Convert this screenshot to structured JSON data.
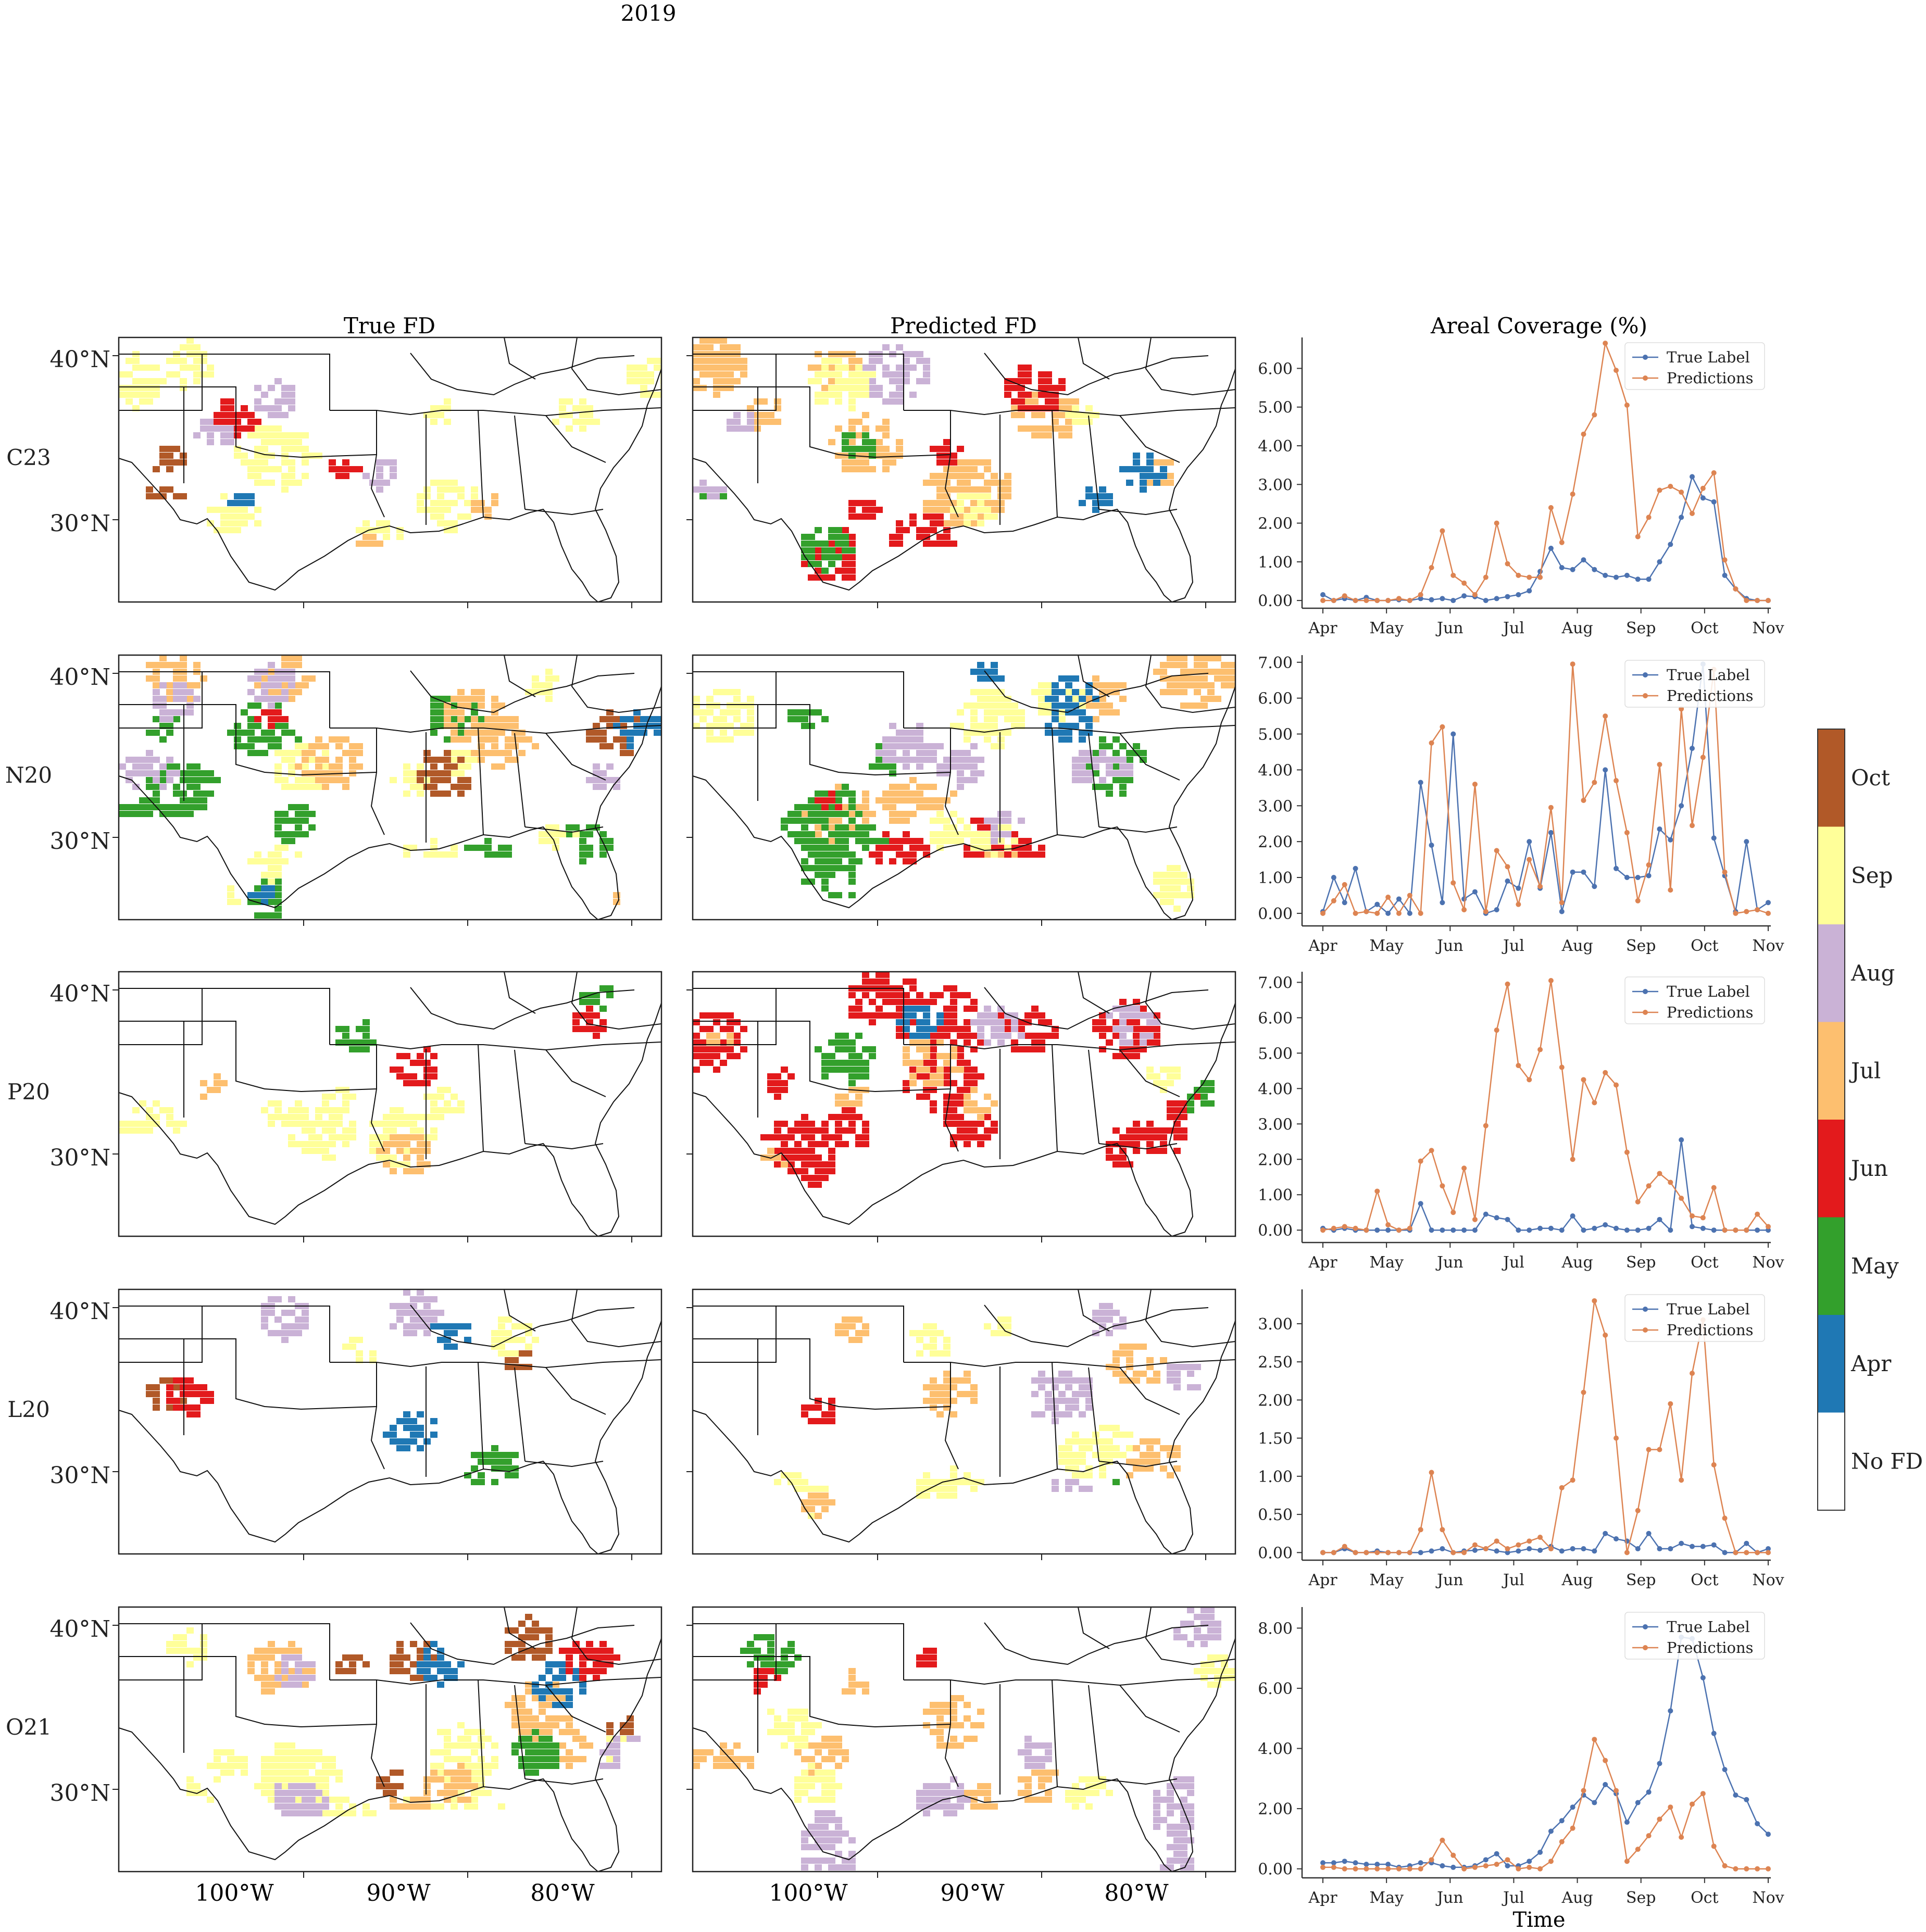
{
  "figure": {
    "suptitle": "2019",
    "column_titles": [
      "True FD",
      "Predicted FD",
      "Areal Coverage (%)"
    ],
    "row_labels": [
      "C23",
      "N20",
      "P20",
      "L20",
      "O21"
    ],
    "lat_labels": [
      "40°N",
      "30°N"
    ],
    "lon_labels": [
      "100°W",
      "90°W",
      "80°W"
    ],
    "bottom_xlabel": "Time"
  },
  "colorbar": {
    "labels": [
      "No FD",
      "Apr",
      "May",
      "Jun",
      "Jul",
      "Aug",
      "Sep",
      "Oct"
    ],
    "colors": [
      "#ffffff",
      "#1f78b4",
      "#33a02c",
      "#e31a1c",
      "#fdbf6f",
      "#cab2d6",
      "#ffff99",
      "#b15928"
    ]
  },
  "map_regions": [
    {
      "row": "C23",
      "true": [
        [
          "Sep",
          0.3
        ],
        [
          "Aug",
          0.15
        ],
        [
          "Oct",
          0.08
        ],
        [
          "Jul",
          0.08
        ],
        [
          "Apr",
          0.04
        ],
        [
          "Jun",
          0.04
        ]
      ],
      "pred": [
        [
          "Jul",
          0.35
        ],
        [
          "Aug",
          0.2
        ],
        [
          "Jun",
          0.15
        ],
        [
          "May",
          0.1
        ],
        [
          "Sep",
          0.1
        ],
        [
          "Apr",
          0.02
        ]
      ]
    },
    {
      "row": "N20",
      "true": [
        [
          "May",
          0.3
        ],
        [
          "Sep",
          0.25
        ],
        [
          "Jul",
          0.2
        ],
        [
          "Aug",
          0.15
        ],
        [
          "Oct",
          0.08
        ],
        [
          "Apr",
          0.08
        ],
        [
          "Jun",
          0.06
        ]
      ],
      "pred": [
        [
          "Jul",
          0.3
        ],
        [
          "May",
          0.3
        ],
        [
          "Jun",
          0.2
        ],
        [
          "Sep",
          0.2
        ],
        [
          "Aug",
          0.15
        ],
        [
          "Apr",
          0.1
        ]
      ]
    },
    {
      "row": "P20",
      "true": [
        [
          "Sep",
          0.2
        ],
        [
          "May",
          0.05
        ],
        [
          "Jun",
          0.04
        ],
        [
          "Aug",
          0.04
        ],
        [
          "Jul",
          0.04
        ]
      ],
      "pred": [
        [
          "Jun",
          0.45
        ],
        [
          "Jul",
          0.15
        ],
        [
          "May",
          0.1
        ],
        [
          "Apr",
          0.06
        ],
        [
          "Aug",
          0.05
        ],
        [
          "Sep",
          0.08
        ]
      ]
    },
    {
      "row": "L20",
      "true": [
        [
          "Aug",
          0.06
        ],
        [
          "Oct",
          0.06
        ],
        [
          "Jun",
          0.03
        ],
        [
          "Apr",
          0.02
        ],
        [
          "May",
          0.02
        ],
        [
          "Sep",
          0.03
        ]
      ],
      "pred": [
        [
          "Sep",
          0.2
        ],
        [
          "Jul",
          0.15
        ],
        [
          "Aug",
          0.15
        ],
        [
          "May",
          0.08
        ],
        [
          "Jun",
          0.02
        ]
      ]
    },
    {
      "row": "O21",
      "true": [
        [
          "Sep",
          0.4
        ],
        [
          "Jul",
          0.2
        ],
        [
          "Oct",
          0.15
        ],
        [
          "Aug",
          0.15
        ],
        [
          "Apr",
          0.05
        ],
        [
          "May",
          0.05
        ],
        [
          "Jun",
          0.04
        ]
      ],
      "pred": [
        [
          "Jul",
          0.25
        ],
        [
          "Aug",
          0.25
        ],
        [
          "Sep",
          0.15
        ],
        [
          "May",
          0.06
        ],
        [
          "Jun",
          0.02
        ]
      ]
    }
  ],
  "chart_data": [
    {
      "type": "line",
      "row": "C23",
      "x_ticks": [
        "Apr",
        "May",
        "Jun",
        "Jul",
        "Aug",
        "Sep",
        "Oct",
        "Nov"
      ],
      "y_ticks": [
        "0.00",
        "1.00",
        "2.00",
        "3.00",
        "4.00",
        "5.00",
        "6.00"
      ],
      "ylim": [
        -0.2,
        6.8
      ],
      "legend": "top-right",
      "series": [
        {
          "name": "True Label",
          "color": "#4c72b0",
          "values": [
            0.15,
            0.0,
            0.05,
            0.0,
            0.08,
            0.0,
            0.0,
            0.02,
            0.0,
            0.05,
            0.02,
            0.05,
            0.0,
            0.12,
            0.1,
            0.0,
            0.05,
            0.1,
            0.15,
            0.25,
            0.75,
            1.35,
            0.85,
            0.8,
            1.05,
            0.8,
            0.65,
            0.6,
            0.65,
            0.55,
            0.55,
            1.0,
            1.45,
            2.15,
            3.2,
            2.65,
            2.55,
            0.65,
            0.3,
            0.05,
            0.0,
            0.0
          ]
        },
        {
          "name": "Predictions",
          "color": "#dd8452",
          "values": [
            0.0,
            0.0,
            0.12,
            0.0,
            0.0,
            0.0,
            0.0,
            0.05,
            0.0,
            0.15,
            0.85,
            1.8,
            0.65,
            0.45,
            0.15,
            0.6,
            2.0,
            0.95,
            0.65,
            0.6,
            0.6,
            2.4,
            1.5,
            2.75,
            4.3,
            4.8,
            6.65,
            5.95,
            5.05,
            1.65,
            2.15,
            2.85,
            2.95,
            2.8,
            2.25,
            2.9,
            3.3,
            1.05,
            0.3,
            0.0,
            0.0,
            0.0
          ]
        }
      ]
    },
    {
      "type": "line",
      "row": "N20",
      "x_ticks": [
        "Apr",
        "May",
        "Jun",
        "Jul",
        "Aug",
        "Sep",
        "Oct",
        "Nov"
      ],
      "y_ticks": [
        "0.00",
        "1.00",
        "2.00",
        "3.00",
        "4.00",
        "5.00",
        "6.00",
        "7.00"
      ],
      "ylim": [
        -0.35,
        7.2
      ],
      "legend": "top-right",
      "series": [
        {
          "name": "True Label",
          "color": "#4c72b0",
          "values": [
            0.05,
            1.0,
            0.3,
            1.25,
            0.05,
            0.25,
            0.0,
            0.4,
            0.0,
            3.65,
            1.9,
            0.3,
            5.0,
            0.4,
            0.6,
            0.0,
            0.1,
            0.9,
            0.7,
            2.0,
            0.7,
            2.25,
            0.05,
            1.15,
            1.15,
            0.75,
            4.0,
            1.25,
            1.0,
            1.0,
            1.05,
            2.35,
            2.05,
            3.0,
            4.6,
            6.95,
            2.1,
            1.05,
            0.05,
            2.0,
            0.1,
            0.3
          ]
        },
        {
          "name": "Predictions",
          "color": "#dd8452",
          "values": [
            0.0,
            0.35,
            0.8,
            0.0,
            0.05,
            0.0,
            0.45,
            0.0,
            0.5,
            0.0,
            4.75,
            5.2,
            0.85,
            0.1,
            3.6,
            0.05,
            1.75,
            1.3,
            0.25,
            1.5,
            0.75,
            2.95,
            0.3,
            6.95,
            3.15,
            3.65,
            5.5,
            3.7,
            2.25,
            0.35,
            1.35,
            4.15,
            0.65,
            5.7,
            2.45,
            4.35,
            6.8,
            1.15,
            0.0,
            0.05,
            0.1,
            0.0
          ]
        }
      ]
    },
    {
      "type": "line",
      "row": "P20",
      "x_ticks": [
        "Apr",
        "May",
        "Jun",
        "Jul",
        "Aug",
        "Sep",
        "Oct",
        "Nov"
      ],
      "y_ticks": [
        "0.00",
        "1.00",
        "2.00",
        "3.00",
        "4.00",
        "5.00",
        "6.00",
        "7.00"
      ],
      "ylim": [
        -0.35,
        7.3
      ],
      "legend": "top-right",
      "series": [
        {
          "name": "True Label",
          "color": "#4c72b0",
          "values": [
            0.05,
            0.0,
            0.05,
            0.0,
            0.0,
            0.0,
            0.0,
            0.0,
            0.0,
            0.75,
            0.0,
            0.0,
            0.0,
            0.0,
            0.0,
            0.45,
            0.35,
            0.3,
            0.0,
            0.0,
            0.05,
            0.05,
            0.0,
            0.4,
            0.0,
            0.05,
            0.15,
            0.05,
            0.0,
            0.0,
            0.05,
            0.3,
            0.0,
            2.55,
            0.1,
            0.05,
            0.0,
            0.0,
            0.0,
            0.0,
            0.0,
            0.0
          ]
        },
        {
          "name": "Predictions",
          "color": "#dd8452",
          "values": [
            0.0,
            0.05,
            0.1,
            0.05,
            0.0,
            1.1,
            0.15,
            0.0,
            0.05,
            1.95,
            2.25,
            1.25,
            0.5,
            1.75,
            0.3,
            2.95,
            5.65,
            6.95,
            4.65,
            4.25,
            5.1,
            7.05,
            4.6,
            2.0,
            4.25,
            3.6,
            4.45,
            4.1,
            2.2,
            0.8,
            1.25,
            1.6,
            1.35,
            0.9,
            0.4,
            0.35,
            1.2,
            0.0,
            0.0,
            0.0,
            0.45,
            0.1
          ]
        }
      ]
    },
    {
      "type": "line",
      "row": "L20",
      "x_ticks": [
        "Apr",
        "May",
        "Jun",
        "Jul",
        "Aug",
        "Sep",
        "Oct",
        "Nov"
      ],
      "y_ticks": [
        "0.00",
        "0.50",
        "1.00",
        "1.50",
        "2.00",
        "2.50",
        "3.00"
      ],
      "ylim": [
        -0.1,
        3.45
      ],
      "legend": "top-right",
      "series": [
        {
          "name": "True Label",
          "color": "#4c72b0",
          "values": [
            0.0,
            0.0,
            0.05,
            0.0,
            0.0,
            0.02,
            0.0,
            0.0,
            0.0,
            0.0,
            0.02,
            0.05,
            0.0,
            0.02,
            0.03,
            0.05,
            0.02,
            0.0,
            0.02,
            0.05,
            0.03,
            0.08,
            0.02,
            0.05,
            0.05,
            0.02,
            0.25,
            0.18,
            0.15,
            0.05,
            0.25,
            0.05,
            0.05,
            0.12,
            0.08,
            0.08,
            0.1,
            0.0,
            0.0,
            0.12,
            0.0,
            0.05
          ]
        },
        {
          "name": "Predictions",
          "color": "#dd8452",
          "values": [
            0.0,
            0.0,
            0.08,
            0.0,
            0.0,
            0.0,
            0.0,
            0.0,
            0.0,
            0.3,
            1.05,
            0.3,
            0.0,
            0.0,
            0.1,
            0.05,
            0.15,
            0.05,
            0.1,
            0.15,
            0.2,
            0.05,
            0.85,
            0.95,
            2.1,
            3.3,
            2.85,
            1.5,
            0.0,
            0.55,
            1.35,
            1.35,
            1.95,
            0.95,
            2.35,
            3.05,
            1.15,
            0.45,
            0.0,
            0.0,
            0.0,
            0.0
          ]
        }
      ]
    },
    {
      "type": "line",
      "row": "O21",
      "x_ticks": [
        "Apr",
        "May",
        "Jun",
        "Jul",
        "Aug",
        "Sep",
        "Oct",
        "Nov"
      ],
      "y_ticks": [
        "0.00",
        "2.00",
        "4.00",
        "6.00",
        "8.00"
      ],
      "ylim": [
        -0.3,
        8.7
      ],
      "legend": "top-right",
      "series": [
        {
          "name": "True Label",
          "color": "#4c72b0",
          "values": [
            0.2,
            0.2,
            0.25,
            0.2,
            0.15,
            0.15,
            0.15,
            0.05,
            0.1,
            0.2,
            0.2,
            0.1,
            0.05,
            0.05,
            0.1,
            0.3,
            0.5,
            0.1,
            0.1,
            0.25,
            0.55,
            1.25,
            1.6,
            2.05,
            2.45,
            2.2,
            2.8,
            2.5,
            1.55,
            2.2,
            2.55,
            3.5,
            5.25,
            7.7,
            7.65,
            6.35,
            4.5,
            3.3,
            2.45,
            2.3,
            1.5,
            1.15
          ]
        },
        {
          "name": "Predictions",
          "color": "#dd8452",
          "values": [
            0.05,
            0.05,
            0.0,
            0.0,
            0.0,
            0.0,
            0.0,
            0.0,
            0.0,
            0.0,
            0.3,
            0.95,
            0.45,
            0.0,
            0.05,
            0.1,
            0.15,
            0.3,
            0.0,
            0.05,
            0.0,
            0.25,
            0.9,
            1.35,
            2.6,
            4.3,
            3.6,
            2.6,
            0.25,
            0.65,
            1.1,
            1.65,
            2.05,
            1.05,
            2.15,
            2.5,
            0.75,
            0.1,
            0.0,
            0.0,
            0.0,
            0.0
          ]
        }
      ]
    }
  ]
}
